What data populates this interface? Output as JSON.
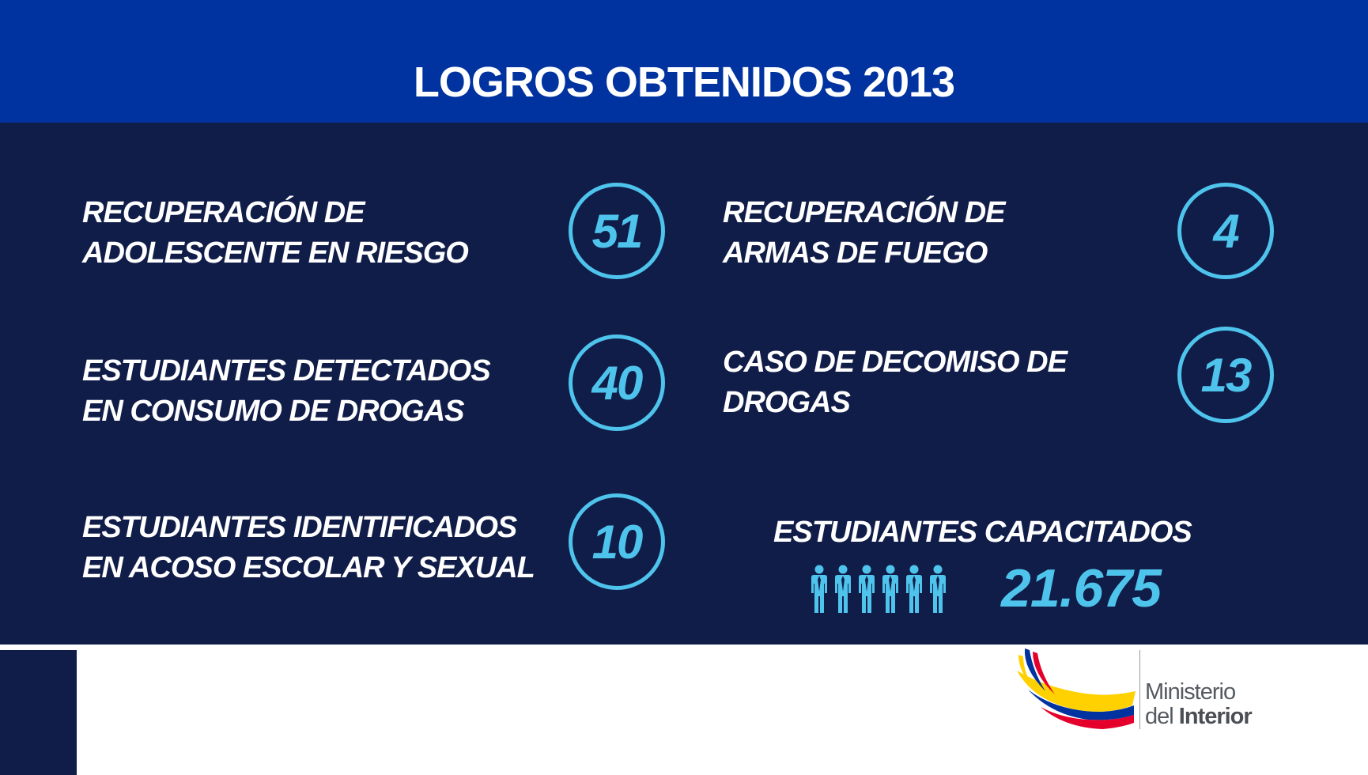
{
  "title": "LOGROS OBTENIDOS 2013",
  "stats": [
    {
      "line1": "RECUPERACIÓN DE",
      "line2": "ADOLESCENTE EN RIESGO",
      "value": "51"
    },
    {
      "line1": "RECUPERACIÓN DE",
      "line2": "ARMAS DE FUEGO",
      "value": "4"
    },
    {
      "line1": "ESTUDIANTES DETECTADOS",
      "line2": "EN CONSUMO DE DROGAS",
      "value": "40"
    },
    {
      "line1": "CASO DE DECOMISO DE",
      "line2": "DROGAS",
      "value": "13"
    },
    {
      "line1": "ESTUDIANTES IDENTIFICADOS",
      "line2": "EN ACOSO ESCOLAR Y SEXUAL",
      "value": "10"
    }
  ],
  "trained": {
    "label": "ESTUDIANTES CAPACITADOS",
    "value": "21.675",
    "icon": "people-icon"
  },
  "logo": {
    "line1": "Ministerio",
    "line2_prefix": "del ",
    "line2_bold": "Interior"
  },
  "colors": {
    "header": "#0033a0",
    "panel": "#111d49",
    "accent": "#4ec4ec",
    "flag_yellow": "#ffd100",
    "flag_blue": "#0033a0",
    "flag_red": "#e4002b"
  }
}
